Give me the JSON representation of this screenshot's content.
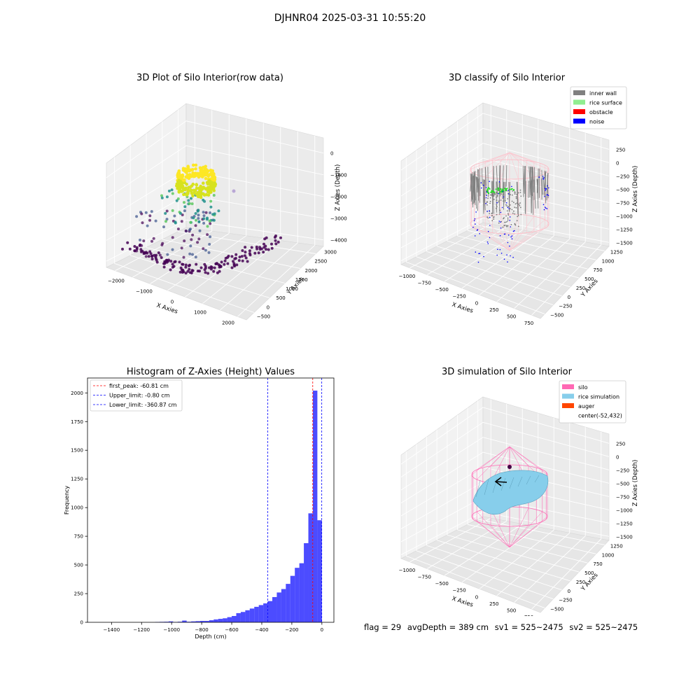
{
  "figure": {
    "suptitle": "DJHNR04 2025-03-31 10:55:20",
    "footer": {
      "flag": "flag = 29",
      "avg_depth": "avgDepth = 389 cm",
      "sv1": "sv1 = 525~2475",
      "sv2": "sv2 = 525~2475"
    }
  },
  "chart_data": [
    {
      "type": "scatter",
      "subtype": "3d",
      "title": "3D Plot of Silo Interior(row data)",
      "xlabel": "X Axies",
      "ylabel": "Y Axies",
      "zlabel": "Z Axies (Depth)",
      "x_ticks": [
        "−2000",
        "−1000",
        "0",
        "1000",
        "2000"
      ],
      "y_ticks": [
        "−500",
        "0",
        "500",
        "1000",
        "1500",
        "2000",
        "2500",
        "3000"
      ],
      "z_ticks": [
        "−4000",
        "−3000",
        "−2000",
        "−1000",
        "0"
      ],
      "colormap": [
        "#440154",
        "#3b528b",
        "#21918c",
        "#5ec962",
        "#fde725"
      ],
      "grid": true
    },
    {
      "type": "scatter",
      "subtype": "3d",
      "title": "3D classify of Silo Interior",
      "xlabel": "X Axies",
      "ylabel": "Y Axies",
      "zlabel": "Z Axies (Depth)",
      "x_ticks": [
        "−1000",
        "−750",
        "−500",
        "−250",
        "0",
        "250",
        "500",
        "750"
      ],
      "y_ticks": [
        "−500",
        "−250",
        "0",
        "250",
        "500",
        "750",
        "1000",
        "1250"
      ],
      "z_ticks": [
        "−1500",
        "−1250",
        "−1000",
        "−750",
        "−500",
        "−250",
        "0",
        "250"
      ],
      "legend": [
        {
          "label": "inner wall",
          "color": "#808080"
        },
        {
          "label": "rice surface",
          "color": "#90ee90"
        },
        {
          "label": "obstacle",
          "color": "#ff0000"
        },
        {
          "label": "noise",
          "color": "#0000ff"
        }
      ],
      "legend_position": "top-right",
      "grid": true
    },
    {
      "type": "bar",
      "subtype": "histogram",
      "title": "Histogram of Z-Axies (Height) Values",
      "xlabel": "Depth (cm)",
      "ylabel": "Frequency",
      "xlim": [
        -1560,
        80
      ],
      "ylim": [
        0,
        2130
      ],
      "x_ticks": [
        -1400,
        -1200,
        -1000,
        -800,
        -600,
        -400,
        -200,
        0
      ],
      "y_ticks": [
        0,
        250,
        500,
        750,
        1000,
        1250,
        1500,
        1750,
        2000
      ],
      "x_tick_labels": [
        "−1400",
        "−1200",
        "−1000",
        "−800",
        "−600",
        "−400",
        "−200",
        "0"
      ],
      "bar_color": "#0000ff",
      "bin_edges": [
        -1530,
        -1500,
        -1470,
        -1440,
        -1410,
        -1380,
        -1350,
        -1320,
        -1290,
        -1260,
        -1230,
        -1200,
        -1170,
        -1140,
        -1110,
        -1080,
        -1050,
        -1020,
        -990,
        -960,
        -930,
        -900,
        -870,
        -840,
        -810,
        -780,
        -750,
        -720,
        -690,
        -660,
        -630,
        -600,
        -570,
        -540,
        -510,
        -480,
        -450,
        -420,
        -390,
        -360,
        -330,
        -300,
        -270,
        -240,
        -210,
        -180,
        -150,
        -120,
        -90,
        -60,
        -30,
        0
      ],
      "values": [
        0,
        0,
        0,
        0,
        0,
        0,
        0,
        0,
        0,
        0,
        0,
        0,
        0,
        0,
        3,
        4,
        5,
        8,
        3,
        5,
        15,
        5,
        8,
        10,
        12,
        12,
        18,
        25,
        30,
        35,
        45,
        55,
        80,
        90,
        105,
        120,
        135,
        150,
        165,
        185,
        220,
        260,
        290,
        335,
        405,
        475,
        515,
        690,
        950,
        2020,
        890
      ],
      "vlines": [
        {
          "label": "first_peak: -60.81 cm",
          "x": -60.81,
          "color": "#ff0000"
        },
        {
          "label": "Upper_limit: -0.80 cm",
          "x": -0.8,
          "color": "#0000ff"
        },
        {
          "label": "Lower_limit: -360.87 cm",
          "x": -360.87,
          "color": "#0000ff"
        }
      ],
      "legend_position": "top-left"
    },
    {
      "type": "scatter",
      "subtype": "3d-wireframe",
      "title": "3D simulation of Silo Interior",
      "xlabel": "X Axies",
      "ylabel": "Y Axies",
      "zlabel": "Z Axies (Depth)",
      "x_ticks": [
        "−1000",
        "−750",
        "−500",
        "−250",
        "0",
        "250",
        "500",
        "750"
      ],
      "y_ticks": [
        "−500",
        "−250",
        "0",
        "250",
        "500",
        "750",
        "1000",
        "1250"
      ],
      "z_ticks": [
        "−1500",
        "−1250",
        "−1000",
        "−750",
        "−500",
        "−250",
        "0",
        "250"
      ],
      "legend": [
        {
          "label": "silo",
          "color": "#ff69b4"
        },
        {
          "label": "rice simulation",
          "color": "#87ceeb"
        },
        {
          "label": "auger",
          "color": "#ff4500"
        },
        {
          "label": "center(-52,432)",
          "color": ""
        }
      ],
      "legend_position": "top-right",
      "grid": true
    }
  ]
}
